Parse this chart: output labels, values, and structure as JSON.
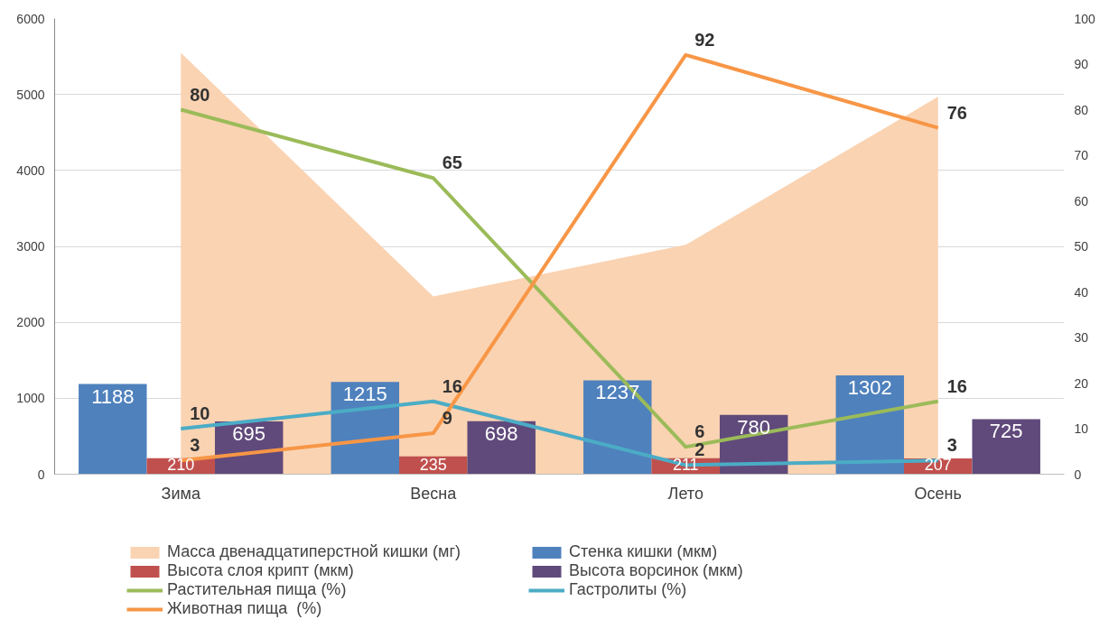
{
  "chart_data": {
    "type": "bar",
    "categories": [
      "Зима",
      "Весна",
      "Лето",
      "Осень"
    ],
    "ylim": [
      0,
      6000
    ],
    "yticks": [
      0,
      1000,
      2000,
      3000,
      4000,
      5000,
      6000
    ],
    "y2lim": [
      0,
      100
    ],
    "y2ticks": [
      0,
      10,
      20,
      30,
      40,
      50,
      60,
      70,
      80,
      90,
      100
    ],
    "grid": "y",
    "legend": "bottom",
    "series": [
      {
        "name": "Масса двенадцатиперстной кишки (мг)",
        "type": "area",
        "color": "#fad3b2",
        "values": [
          5550,
          2340,
          3020,
          4970
        ]
      },
      {
        "name": "Стенка кишки (мкм)",
        "color": "#4f81bd",
        "values": [
          1188,
          1215,
          1237,
          1302
        ],
        "value_labels": [
          "1188",
          "1215",
          "1237",
          "1302"
        ]
      },
      {
        "name": "Высота слоя крипт (мкм)",
        "color": "#c0504d",
        "values": [
          210,
          235,
          211,
          207
        ],
        "value_labels": [
          "210",
          "235",
          "211",
          "207"
        ]
      },
      {
        "name": "Высота ворсинок (мкм)",
        "color": "#604a7b",
        "values": [
          695,
          698,
          780,
          725
        ],
        "value_labels": [
          "695",
          "698",
          "780",
          "725"
        ]
      },
      {
        "name": "Растительная пища (%)",
        "type": "line",
        "axis": "y2",
        "color": "#9bbb59",
        "values": [
          80,
          65,
          6,
          16
        ],
        "value_labels": [
          "80",
          "65",
          "6",
          "16"
        ]
      },
      {
        "name": "Гастролиты (%)",
        "type": "line",
        "axis": "y2",
        "color": "#4bacc6",
        "values": [
          10,
          16,
          2,
          3
        ],
        "value_labels": [
          "10",
          "16",
          "2",
          "3"
        ]
      },
      {
        "name": "Животная пища  (%)",
        "type": "line",
        "axis": "y2",
        "color": "#f79646",
        "values": [
          3,
          9,
          92,
          76
        ],
        "value_labels": [
          "3",
          "9",
          "92",
          "76"
        ]
      }
    ]
  }
}
